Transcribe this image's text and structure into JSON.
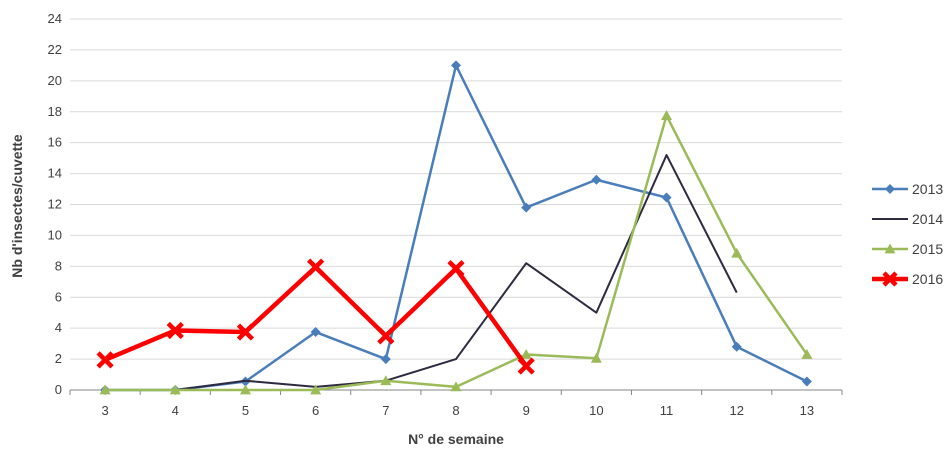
{
  "chart_data": {
    "type": "line",
    "title": "",
    "xlabel": "N° de semaine",
    "ylabel": "Nb d'insectes/cuvette",
    "categories": [
      "3",
      "4",
      "5",
      "6",
      "7",
      "8",
      "9",
      "10",
      "11",
      "12",
      "13"
    ],
    "ylim": [
      0,
      24
    ],
    "yticks": [
      "0",
      "2",
      "4",
      "6",
      "8",
      "10",
      "12",
      "14",
      "16",
      "18",
      "20",
      "22",
      "24"
    ],
    "grid": "horizontal",
    "legend_position": "right",
    "series": [
      {
        "name": "2013",
        "color": "#4a7ebb",
        "marker": "diamond",
        "values": [
          0,
          0,
          0.55,
          3.75,
          2.0,
          21.0,
          11.8,
          13.6,
          12.45,
          2.8,
          0.55
        ]
      },
      {
        "name": "2014",
        "color": "#2e2a40",
        "marker": "none",
        "values": [
          0,
          0,
          0.6,
          0.2,
          0.6,
          2.0,
          8.2,
          5.0,
          15.2,
          6.3,
          null
        ]
      },
      {
        "name": "2015",
        "color": "#9bbb59",
        "marker": "triangle",
        "values": [
          0,
          0,
          0,
          0,
          0.6,
          0.2,
          2.3,
          2.05,
          17.75,
          8.85,
          2.3
        ]
      },
      {
        "name": "2016",
        "color": "#ff0000",
        "marker": "x",
        "values": [
          1.95,
          3.85,
          3.75,
          7.95,
          3.5,
          7.85,
          1.55,
          null,
          null,
          null,
          null
        ]
      }
    ]
  }
}
